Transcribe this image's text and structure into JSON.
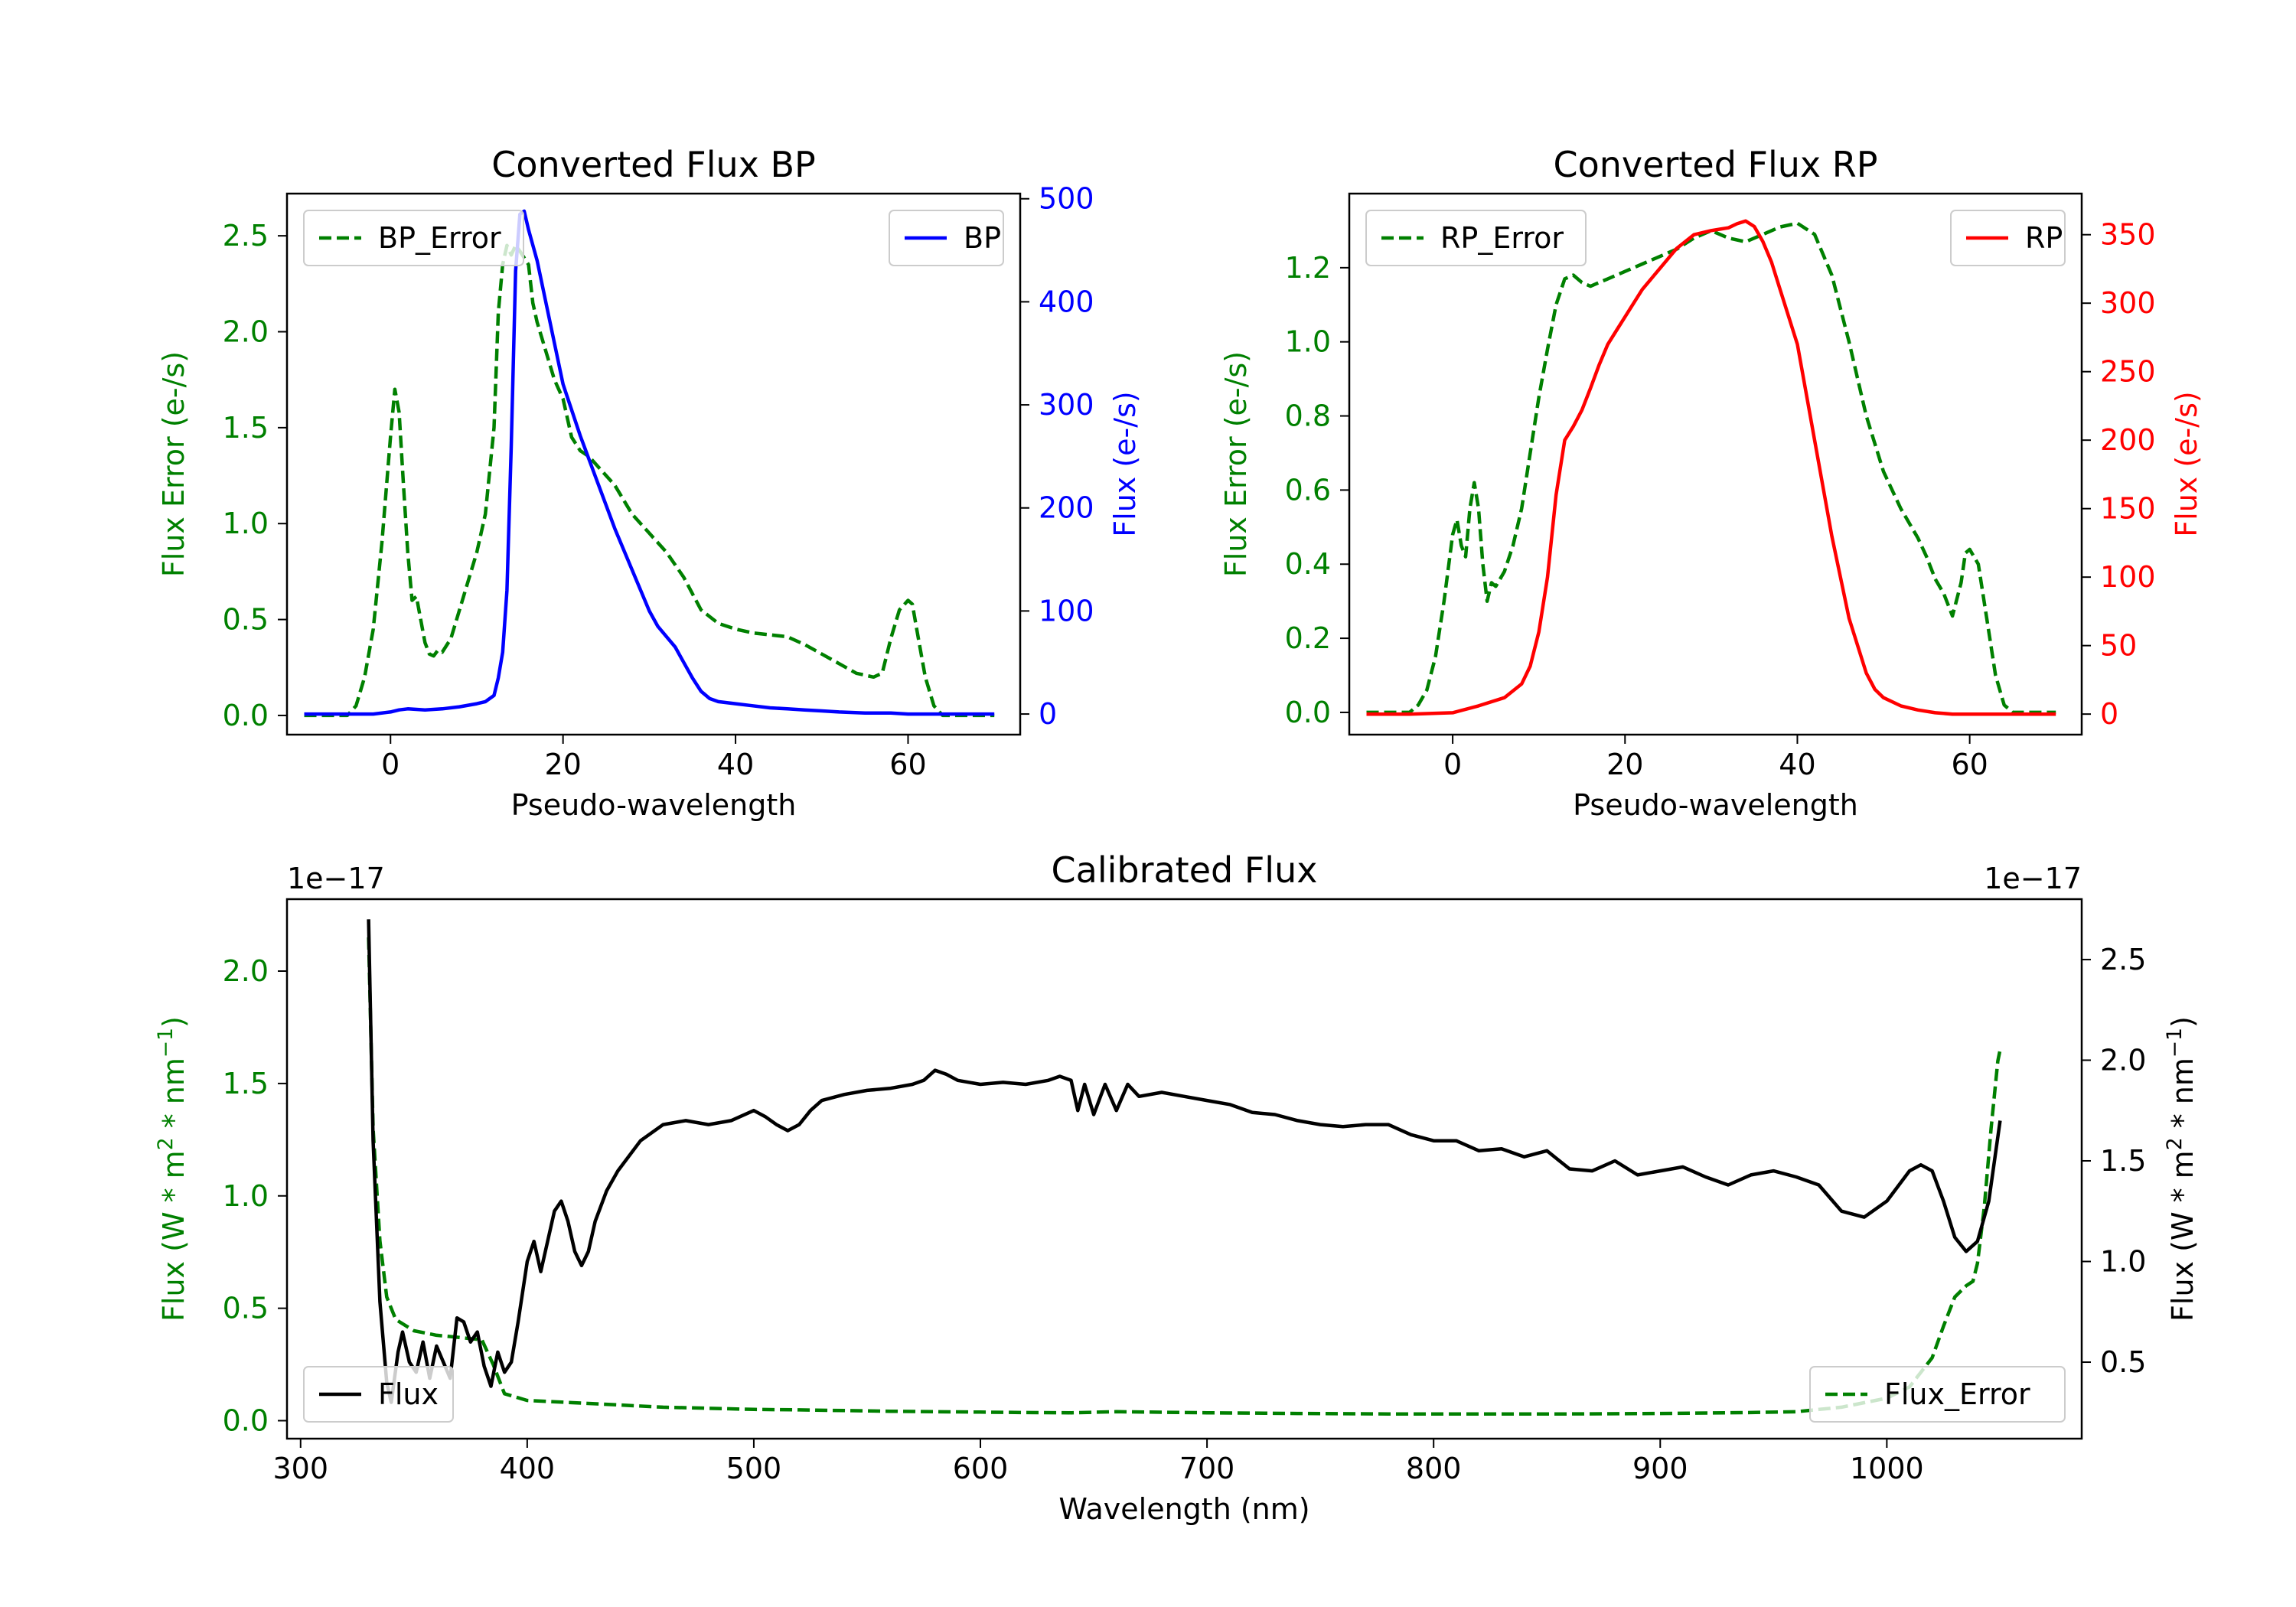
{
  "chart_data": [
    {
      "type": "line",
      "title": "Converted Flux BP",
      "xlabel": "Pseudo-wavelength",
      "ylabel_left": "Flux Error (e-/s)",
      "ylabel_right": "Flux (e-/s)",
      "xlim": [
        -12,
        73
      ],
      "ylim_left": [
        -0.1,
        2.72
      ],
      "ylim_right": [
        -20,
        505
      ],
      "xticks": [
        0,
        20,
        40,
        60
      ],
      "yticks_left": [
        0.0,
        0.5,
        1.0,
        1.5,
        2.0,
        2.5
      ],
      "yticks_right": [
        0,
        100,
        200,
        300,
        400,
        500
      ],
      "left_color": "#008000",
      "right_color": "#0000ff",
      "series": [
        {
          "name": "BP_Error",
          "axis": "left",
          "style": "dashed",
          "color": "#008000",
          "x": [
            -10,
            -5,
            -4,
            -3,
            -2,
            -1,
            0,
            0.5,
            1,
            1.5,
            2,
            2.5,
            3,
            3.5,
            4,
            4.5,
            5,
            5.5,
            6,
            7,
            8,
            9,
            10,
            11,
            12,
            12.5,
            13,
            13.5,
            14,
            14.5,
            15,
            16,
            16.5,
            17,
            18,
            19,
            20,
            21,
            22,
            23,
            24,
            26,
            28,
            30,
            32,
            34,
            36,
            38,
            40,
            42,
            44,
            46,
            48,
            50,
            52,
            54,
            56,
            57,
            58,
            59,
            60,
            60.5,
            61,
            62,
            63,
            64,
            70
          ],
          "values": [
            0,
            0,
            0.05,
            0.2,
            0.45,
            0.9,
            1.45,
            1.7,
            1.58,
            1.2,
            0.85,
            0.6,
            0.62,
            0.5,
            0.38,
            0.32,
            0.31,
            0.34,
            0.33,
            0.4,
            0.55,
            0.7,
            0.85,
            1.05,
            1.5,
            2.1,
            2.35,
            2.45,
            2.4,
            2.45,
            2.42,
            2.35,
            2.15,
            2.05,
            1.9,
            1.75,
            1.65,
            1.45,
            1.38,
            1.35,
            1.3,
            1.2,
            1.05,
            0.95,
            0.85,
            0.72,
            0.55,
            0.48,
            0.45,
            0.43,
            0.42,
            0.41,
            0.37,
            0.32,
            0.27,
            0.22,
            0.2,
            0.22,
            0.4,
            0.55,
            0.6,
            0.58,
            0.45,
            0.2,
            0.05,
            0,
            0
          ]
        },
        {
          "name": "BP",
          "axis": "right",
          "style": "solid",
          "color": "#0000ff",
          "x": [
            -10,
            -2,
            0,
            1,
            2,
            4,
            6,
            8,
            10,
            11,
            12,
            12.5,
            13,
            13.5,
            14,
            14.5,
            15,
            15.5,
            16,
            16.5,
            17,
            18,
            19,
            20,
            22,
            24,
            26,
            28,
            30,
            31,
            32,
            33,
            34,
            35,
            36,
            37,
            38,
            40,
            42,
            44,
            46,
            48,
            50,
            52,
            55,
            58,
            60,
            62,
            65,
            70
          ],
          "values": [
            0,
            0,
            2,
            4,
            5,
            4,
            5,
            7,
            10,
            12,
            18,
            35,
            60,
            120,
            260,
            430,
            485,
            488,
            470,
            455,
            440,
            400,
            360,
            320,
            270,
            225,
            180,
            140,
            100,
            85,
            75,
            65,
            50,
            35,
            22,
            15,
            12,
            10,
            8,
            6,
            5,
            4,
            3,
            2,
            1,
            1,
            0,
            0,
            0,
            0
          ]
        }
      ],
      "legend": [
        {
          "label": "BP_Error",
          "position": "upper-left"
        },
        {
          "label": "BP",
          "position": "upper-right"
        }
      ]
    },
    {
      "type": "line",
      "title": "Converted Flux RP",
      "xlabel": "Pseudo-wavelength",
      "ylabel_left": "Flux Error (e-/s)",
      "ylabel_right": "Flux (e-/s)",
      "xlim": [
        -12,
        73
      ],
      "ylim_left": [
        -0.06,
        1.4
      ],
      "ylim_right": [
        -15,
        380
      ],
      "xticks": [
        0,
        20,
        40,
        60
      ],
      "yticks_left": [
        0.0,
        0.2,
        0.4,
        0.6,
        0.8,
        1.0,
        1.2
      ],
      "yticks_right": [
        0,
        50,
        100,
        150,
        200,
        250,
        300,
        350
      ],
      "left_color": "#008000",
      "right_color": "#ff0000",
      "series": [
        {
          "name": "RP_Error",
          "axis": "left",
          "style": "dashed",
          "color": "#008000",
          "x": [
            -10,
            -5,
            -4,
            -3,
            -2,
            -1,
            0,
            0.5,
            1,
            1.5,
            2,
            2.5,
            3,
            3.5,
            4,
            4.5,
            5,
            6,
            7,
            8,
            9,
            10,
            11,
            12,
            13,
            14,
            15,
            16,
            17,
            18,
            20,
            22,
            24,
            26,
            28,
            30,
            32,
            34,
            36,
            38,
            40,
            42,
            44,
            46,
            48,
            50,
            52,
            54,
            55,
            56,
            57,
            58,
            59,
            59.5,
            60,
            61,
            62,
            63,
            64,
            65,
            70
          ],
          "values": [
            0,
            0,
            0.02,
            0.06,
            0.15,
            0.3,
            0.48,
            0.52,
            0.45,
            0.42,
            0.55,
            0.62,
            0.55,
            0.4,
            0.3,
            0.35,
            0.34,
            0.38,
            0.45,
            0.55,
            0.7,
            0.85,
            0.98,
            1.1,
            1.17,
            1.18,
            1.16,
            1.15,
            1.16,
            1.17,
            1.19,
            1.21,
            1.23,
            1.25,
            1.28,
            1.3,
            1.28,
            1.27,
            1.29,
            1.31,
            1.32,
            1.29,
            1.18,
            1.0,
            0.8,
            0.65,
            0.55,
            0.47,
            0.42,
            0.36,
            0.32,
            0.26,
            0.35,
            0.43,
            0.44,
            0.4,
            0.25,
            0.1,
            0.02,
            0,
            0
          ]
        },
        {
          "name": "RP",
          "axis": "right",
          "style": "solid",
          "color": "#ff0000",
          "x": [
            -10,
            -5,
            0,
            3,
            6,
            8,
            9,
            10,
            11,
            12,
            13,
            14,
            15,
            16,
            17,
            18,
            19,
            20,
            22,
            24,
            26,
            28,
            30,
            31,
            32,
            33,
            34,
            35,
            36,
            37,
            38,
            40,
            42,
            44,
            46,
            48,
            49,
            50,
            52,
            54,
            56,
            58,
            60,
            65,
            70
          ],
          "values": [
            0,
            0,
            1,
            6,
            12,
            22,
            35,
            60,
            100,
            160,
            200,
            210,
            222,
            238,
            255,
            270,
            280,
            290,
            310,
            325,
            340,
            350,
            353,
            354,
            355,
            358,
            360,
            356,
            345,
            330,
            310,
            270,
            200,
            130,
            70,
            30,
            18,
            12,
            6,
            3,
            1,
            0,
            0,
            0,
            0
          ]
        }
      ],
      "legend": [
        {
          "label": "RP_Error",
          "position": "upper-left"
        },
        {
          "label": "RP",
          "position": "upper-right"
        }
      ]
    },
    {
      "type": "line",
      "title": "Calibrated Flux",
      "xlabel": "Wavelength (nm)",
      "ylabel_left": "Flux (W * m$^2$ * nm$^{-1}$)",
      "ylabel_right": "Flux (W * m$^2$ * nm$^{-1}$)",
      "scale_left": "1e−17",
      "scale_right": "1e−17",
      "xlim": [
        294,
        1086
      ],
      "ylim_left": [
        -0.08,
        2.32
      ],
      "ylim_right": [
        0.12,
        2.8
      ],
      "xticks": [
        300,
        400,
        500,
        600,
        700,
        800,
        900,
        1000
      ],
      "yticks_left": [
        0.0,
        0.5,
        1.0,
        1.5,
        2.0
      ],
      "yticks_right": [
        0.5,
        1.0,
        1.5,
        2.0,
        2.5
      ],
      "left_color": "#008000",
      "right_color": "#000000",
      "series": [
        {
          "name": "Flux_Error",
          "axis": "left",
          "style": "dashed",
          "color": "#008000",
          "x": [
            330,
            332,
            335,
            338,
            342,
            350,
            360,
            370,
            380,
            385,
            390,
            400,
            420,
            440,
            460,
            480,
            500,
            520,
            540,
            560,
            580,
            600,
            620,
            640,
            660,
            700,
            740,
            780,
            820,
            860,
            900,
            940,
            960,
            980,
            1000,
            1010,
            1020,
            1025,
            1030,
            1035,
            1038,
            1040,
            1043,
            1046,
            1049,
            1050
          ],
          "values": [
            2.15,
            1.3,
            0.8,
            0.55,
            0.45,
            0.4,
            0.38,
            0.37,
            0.36,
            0.25,
            0.12,
            0.09,
            0.08,
            0.07,
            0.06,
            0.055,
            0.05,
            0.048,
            0.045,
            0.042,
            0.04,
            0.038,
            0.036,
            0.035,
            0.04,
            0.035,
            0.032,
            0.03,
            0.03,
            0.03,
            0.032,
            0.036,
            0.04,
            0.06,
            0.1,
            0.15,
            0.28,
            0.42,
            0.55,
            0.6,
            0.62,
            0.7,
            0.95,
            1.3,
            1.6,
            1.65
          ]
        },
        {
          "name": "Flux",
          "axis": "right",
          "style": "solid",
          "color": "#000000",
          "x": [
            330,
            332,
            335,
            338,
            340,
            343,
            345,
            348,
            351,
            354,
            357,
            360,
            363,
            366,
            369,
            372,
            375,
            378,
            381,
            384,
            387,
            390,
            393,
            396,
            400,
            403,
            406,
            409,
            412,
            415,
            418,
            421,
            424,
            427,
            430,
            435,
            440,
            450,
            460,
            470,
            480,
            490,
            500,
            505,
            510,
            515,
            520,
            525,
            530,
            540,
            550,
            560,
            570,
            575,
            580,
            585,
            590,
            600,
            610,
            620,
            630,
            635,
            640,
            643,
            646,
            650,
            655,
            660,
            665,
            670,
            680,
            690,
            700,
            710,
            720,
            730,
            740,
            750,
            760,
            770,
            780,
            790,
            800,
            810,
            820,
            830,
            840,
            850,
            860,
            870,
            880,
            890,
            900,
            910,
            920,
            930,
            940,
            950,
            960,
            970,
            980,
            990,
            1000,
            1010,
            1015,
            1020,
            1025,
            1030,
            1035,
            1040,
            1045,
            1050
          ],
          "values": [
            2.7,
            1.6,
            0.8,
            0.4,
            0.3,
            0.55,
            0.65,
            0.5,
            0.45,
            0.6,
            0.42,
            0.58,
            0.5,
            0.42,
            0.72,
            0.7,
            0.6,
            0.65,
            0.48,
            0.38,
            0.55,
            0.45,
            0.5,
            0.7,
            1.0,
            1.1,
            0.95,
            1.1,
            1.25,
            1.3,
            1.2,
            1.05,
            0.98,
            1.05,
            1.2,
            1.35,
            1.45,
            1.6,
            1.68,
            1.7,
            1.68,
            1.7,
            1.75,
            1.72,
            1.68,
            1.65,
            1.68,
            1.75,
            1.8,
            1.83,
            1.85,
            1.86,
            1.88,
            1.9,
            1.95,
            1.93,
            1.9,
            1.88,
            1.89,
            1.88,
            1.9,
            1.92,
            1.9,
            1.75,
            1.88,
            1.73,
            1.88,
            1.75,
            1.88,
            1.82,
            1.84,
            1.82,
            1.8,
            1.78,
            1.74,
            1.73,
            1.7,
            1.68,
            1.67,
            1.68,
            1.68,
            1.63,
            1.6,
            1.6,
            1.55,
            1.56,
            1.52,
            1.55,
            1.46,
            1.45,
            1.5,
            1.43,
            1.45,
            1.47,
            1.42,
            1.38,
            1.43,
            1.45,
            1.42,
            1.38,
            1.25,
            1.22,
            1.3,
            1.45,
            1.48,
            1.45,
            1.3,
            1.12,
            1.05,
            1.1,
            1.3,
            1.7
          ]
        }
      ],
      "legend": [
        {
          "label": "Flux",
          "position": "lower-left"
        },
        {
          "label": "Flux_Error",
          "position": "lower-right"
        }
      ]
    }
  ]
}
